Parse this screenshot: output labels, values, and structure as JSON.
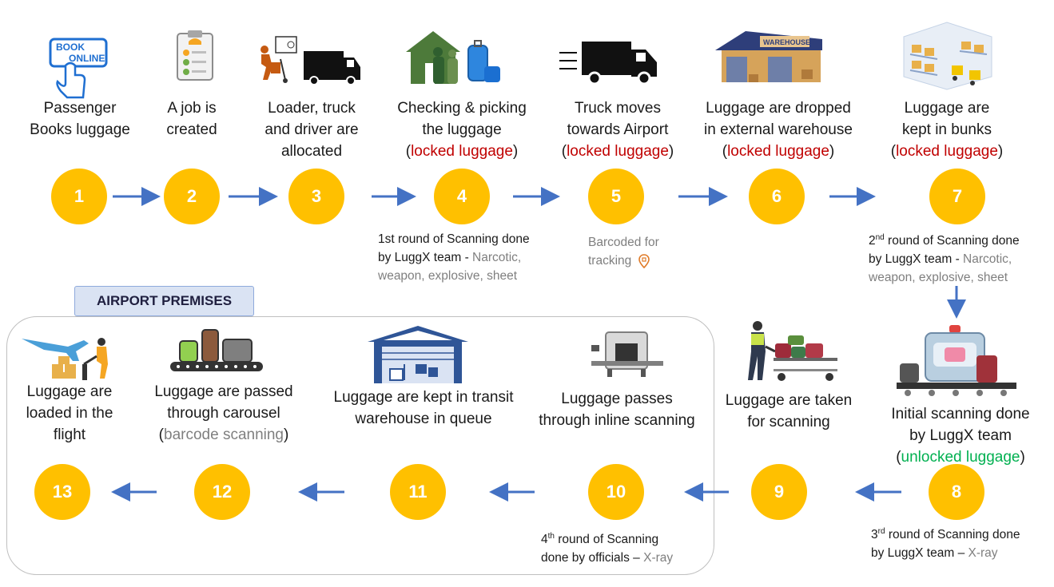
{
  "premises": {
    "label": "AIRPORT PREMISES"
  },
  "steps": [
    {
      "num": "1",
      "line1": "Passenger",
      "line2": "Books luggage",
      "icon": "book-online-icon",
      "icon_text1": "BOOK",
      "icon_text2": "ONLINE"
    },
    {
      "num": "2",
      "line1": "A job is",
      "line2": "created",
      "icon": "clipboard-job-icon"
    },
    {
      "num": "3",
      "line1": "Loader, truck",
      "line2": "and driver are",
      "line3": "allocated",
      "icon": "loader-truck-icon"
    },
    {
      "num": "4",
      "line1": "Checking & picking",
      "line2": "the luggage",
      "paren_open": "(",
      "status": "locked luggage",
      "paren_close": ")",
      "icon": "family-luggage-icon"
    },
    {
      "num": "5",
      "line1": "Truck moves",
      "line2": "towards Airport",
      "paren_open": "(",
      "status": "locked luggage",
      "paren_close": ")",
      "icon": "moving-truck-icon"
    },
    {
      "num": "6",
      "line1": "Luggage are dropped",
      "line2": "in external warehouse",
      "paren_open": "(",
      "status": "locked luggage",
      "paren_close": ")",
      "icon": "warehouse-icon",
      "icon_text": "WAREHOUSE"
    },
    {
      "num": "7",
      "line1": "Luggage are",
      "line2": "kept in bunks",
      "paren_open": "(",
      "status": "locked luggage",
      "paren_close": ")",
      "icon": "bunks-warehouse-icon"
    },
    {
      "num": "8",
      "line1": "Initial scanning done",
      "line2": "by LuggX team",
      "paren_open": "(",
      "status": "unlocked luggage",
      "paren_close": ")",
      "icon": "scanner-machine-icon"
    },
    {
      "num": "9",
      "line1": "Luggage are taken",
      "line2": "for scanning",
      "icon": "luggage-cart-icon"
    },
    {
      "num": "10",
      "line1": "Luggage passes",
      "line2": "through inline scanning",
      "icon": "xray-machine-icon"
    },
    {
      "num": "11",
      "line1": "Luggage are kept in transit",
      "line2": "warehouse in queue",
      "icon": "transit-warehouse-icon"
    },
    {
      "num": "12",
      "line1": "Luggage are passed",
      "line2": "through carousel",
      "paren_open": "(",
      "status": "barcode scanning",
      "paren_close": ")",
      "icon": "carousel-icon"
    },
    {
      "num": "13",
      "line1": "Luggage are",
      "line2": "loaded in the",
      "line3": "flight",
      "icon": "airplane-loading-icon"
    }
  ],
  "notes": {
    "n4": {
      "a": "1st round of Scanning done",
      "b": "by LuggX team - ",
      "c": "Narcotic,",
      "d": "weapon, explosive, sheet"
    },
    "n5": {
      "a": "Barcoded for",
      "b": "tracking",
      "icon": "location-pin-icon"
    },
    "n7": {
      "ord": "2",
      "sup": "nd",
      "a": " round of Scanning done",
      "b": "by LuggX team - ",
      "c": "Narcotic,",
      "d": "weapon, explosive, sheet"
    },
    "n8": {
      "ord": "3",
      "sup": "rd",
      "a": " round of Scanning done",
      "b": "by LuggX team – ",
      "c": "X-ray"
    },
    "n10": {
      "ord": "4",
      "sup": "th",
      "a": " round of Scanning",
      "b": "done by officials – ",
      "c": "X-ray"
    }
  },
  "colors": {
    "circle": "#FFC000",
    "arrow": "#4472C4",
    "locked": "#C00000",
    "unlocked": "#00B050",
    "muted": "#7F7F7F"
  }
}
